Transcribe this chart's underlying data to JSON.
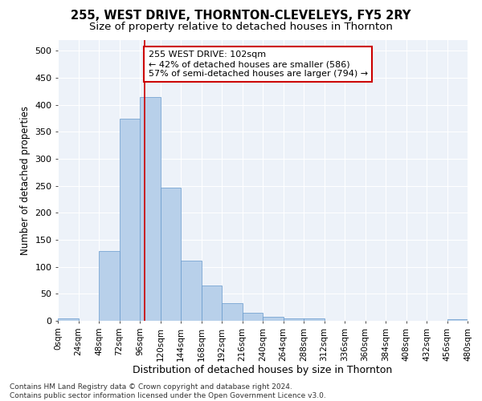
{
  "title1": "255, WEST DRIVE, THORNTON-CLEVELEYS, FY5 2RY",
  "title2": "Size of property relative to detached houses in Thornton",
  "xlabel": "Distribution of detached houses by size in Thornton",
  "ylabel": "Number of detached properties",
  "bin_edges": [
    0,
    24,
    48,
    72,
    96,
    120,
    144,
    168,
    192,
    216,
    240,
    264,
    288,
    312,
    336,
    360,
    384,
    408,
    432,
    456,
    480
  ],
  "bar_heights": [
    5,
    0,
    130,
    375,
    415,
    246,
    111,
    65,
    33,
    15,
    8,
    5,
    4,
    0,
    0,
    0,
    0,
    0,
    0,
    3
  ],
  "bar_color": "#b8d0ea",
  "bar_edge_color": "#6699cc",
  "property_size": 102,
  "red_line_color": "#cc0000",
  "annotation_line1": "255 WEST DRIVE: 102sqm",
  "annotation_line2": "← 42% of detached houses are smaller (586)",
  "annotation_line3": "57% of semi-detached houses are larger (794) →",
  "annotation_box_facecolor": "#ffffff",
  "annotation_box_edgecolor": "#cc0000",
  "ylim": [
    0,
    520
  ],
  "yticks": [
    0,
    50,
    100,
    150,
    200,
    250,
    300,
    350,
    400,
    450,
    500
  ],
  "xlim": [
    0,
    480
  ],
  "background_color": "#edf2f9",
  "grid_color": "#ffffff",
  "footer_line1": "Contains HM Land Registry data © Crown copyright and database right 2024.",
  "footer_line2": "Contains public sector information licensed under the Open Government Licence v3.0.",
  "title1_fontsize": 10.5,
  "title2_fontsize": 9.5,
  "xlabel_fontsize": 9,
  "ylabel_fontsize": 8.5,
  "ytick_fontsize": 8,
  "xtick_fontsize": 7.5,
  "annotation_fontsize": 8,
  "footer_fontsize": 6.5
}
